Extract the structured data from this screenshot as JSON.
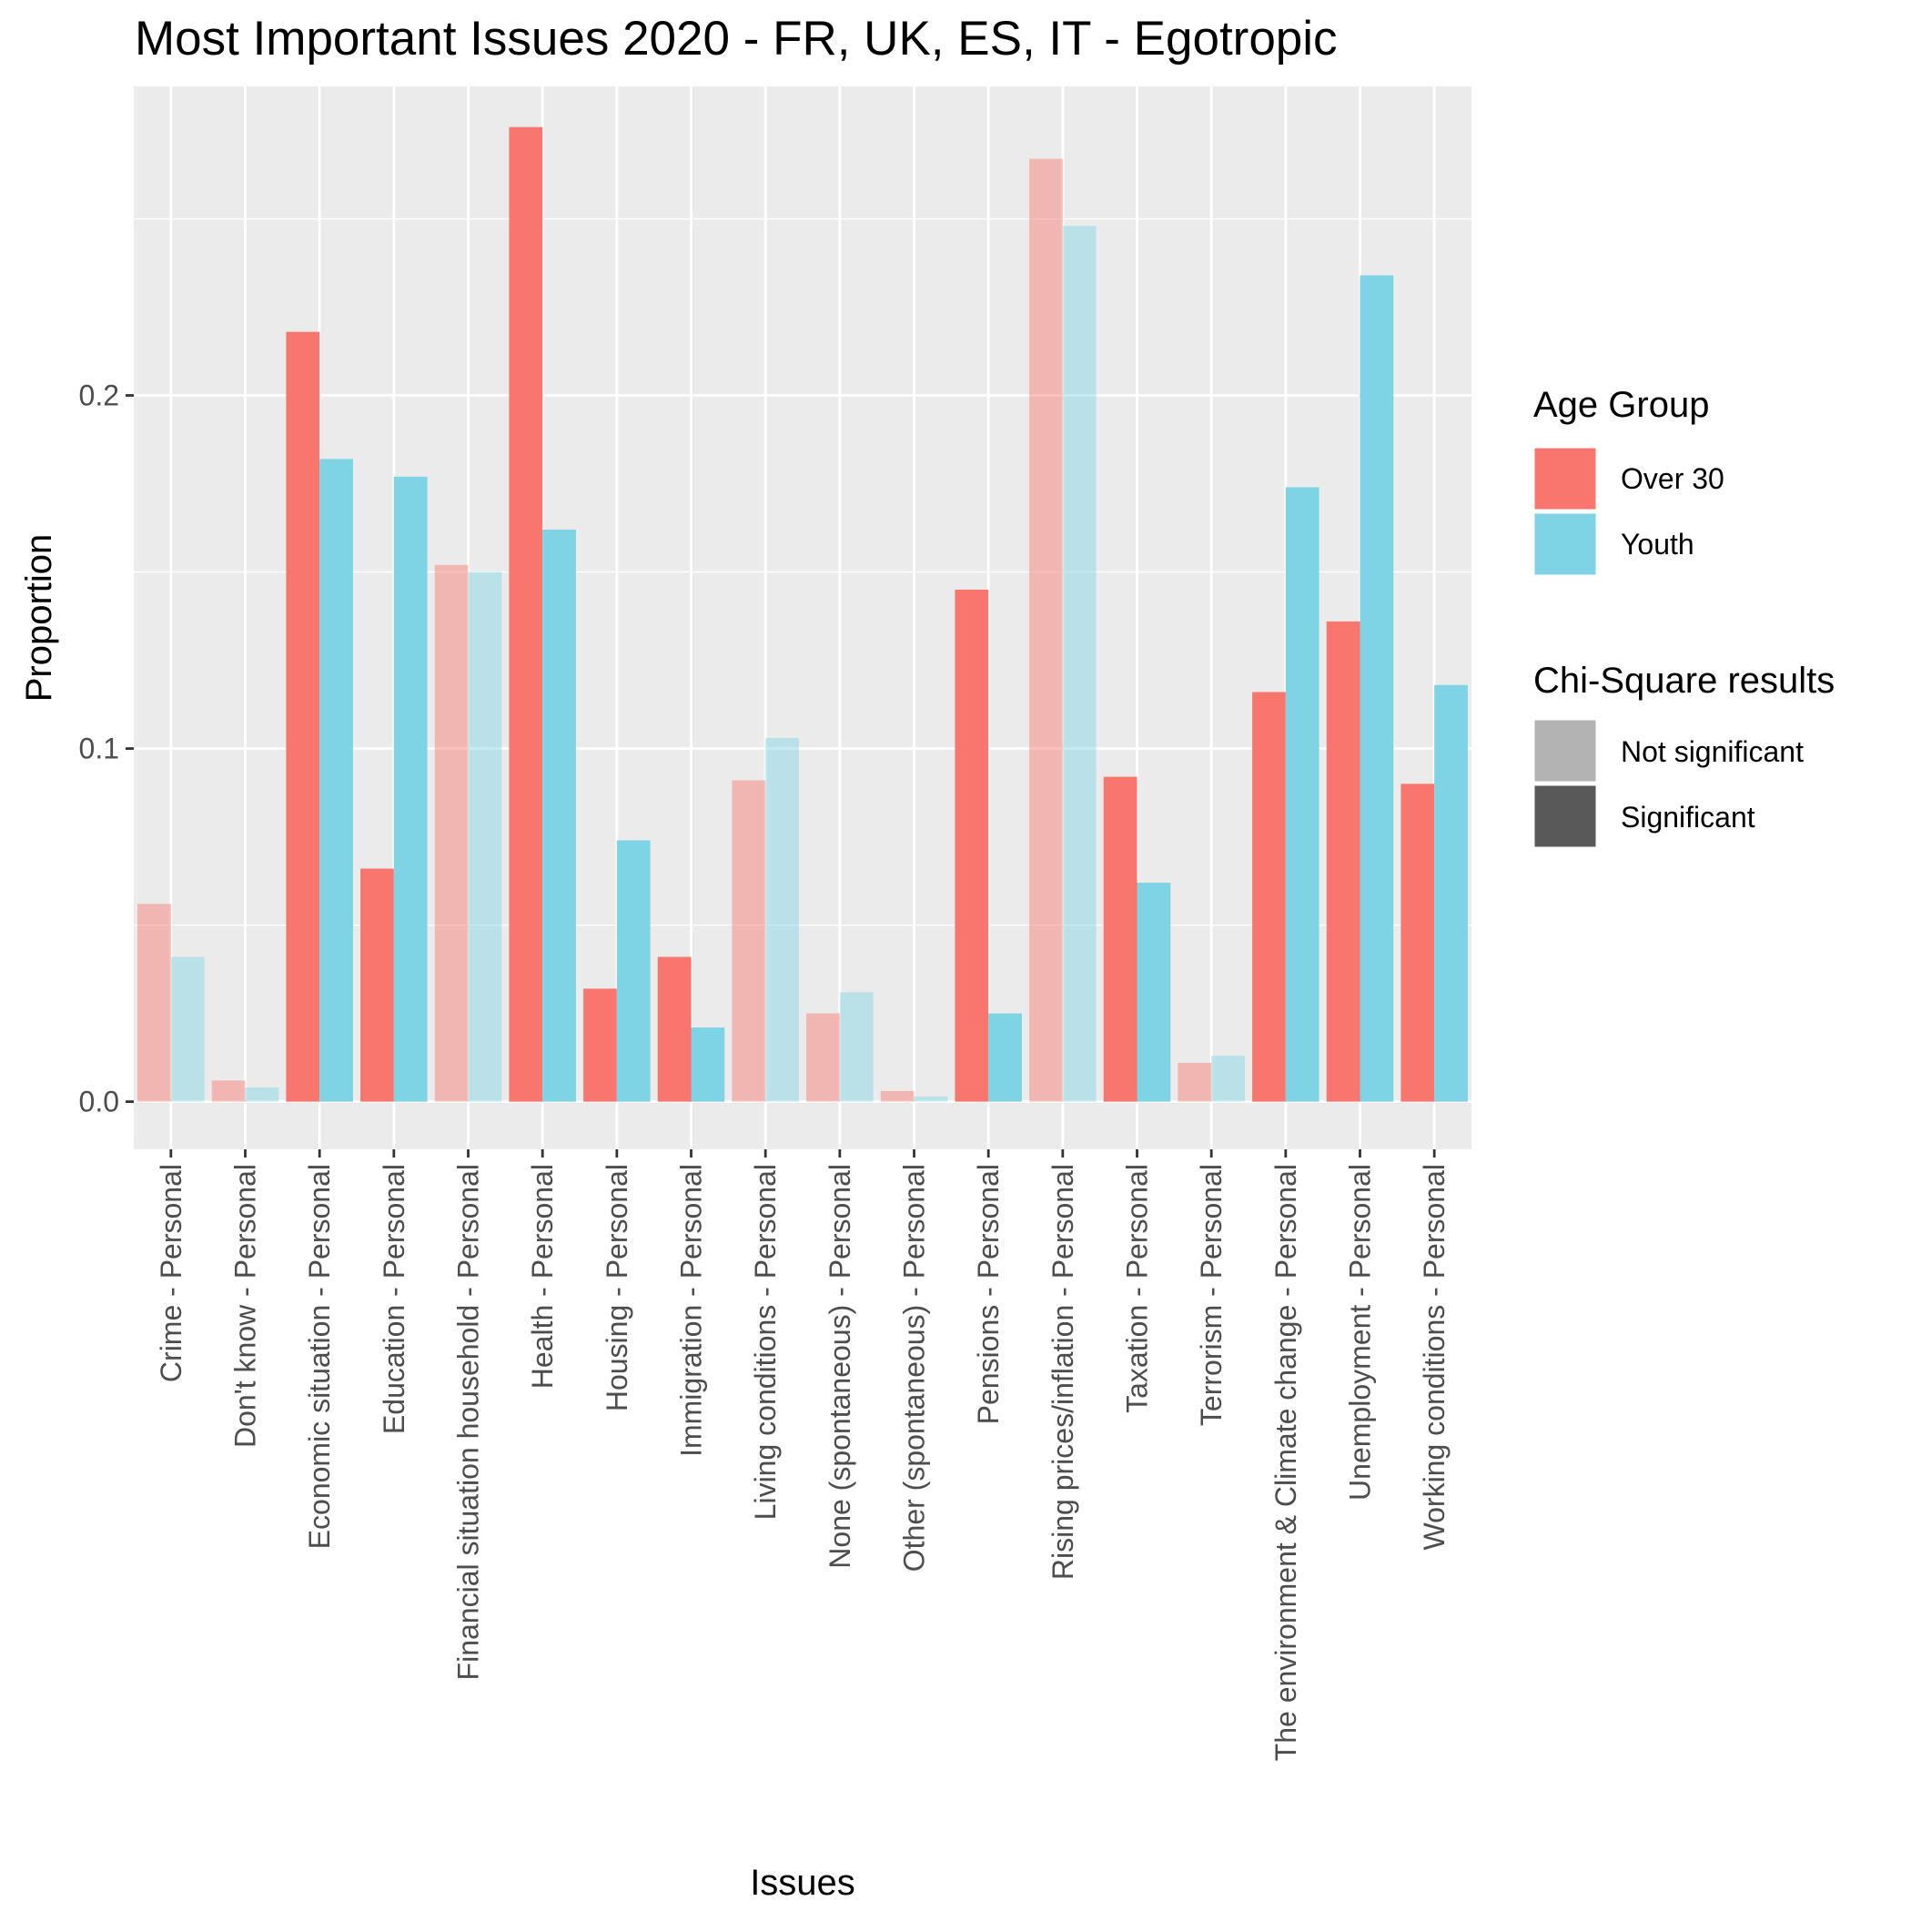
{
  "chart_data": {
    "type": "bar",
    "title": "Most Important Issues 2020 - FR, UK, ES, IT - Egotropic",
    "xlabel": "Issues",
    "ylabel": "Proportion",
    "ylim": [
      -0.0135,
      0.2875
    ],
    "yticks": [
      0.0,
      0.1,
      0.2
    ],
    "ytick_labels": [
      "0.0",
      "0.1",
      "0.2"
    ],
    "grid": true,
    "categories": [
      "Crime - Personal",
      "Don't know - Personal",
      "Economic situation - Personal",
      "Education - Personal",
      "Financial situation household - Personal",
      "Health - Personal",
      "Housing - Personal",
      "Immigration - Personal",
      "Living conditions - Personal",
      "None (spontaneous) - Personal",
      "Other (spontaneous) - Personal",
      "Pensions - Personal",
      "Rising prices/inflation - Personal",
      "Taxation - Personal",
      "Terrorism - Personal",
      "The environment & Climate change - Personal",
      "Unemployment - Personal",
      "Working conditions - Personal"
    ],
    "series": [
      {
        "name": "Over 30",
        "color": "#f8766d",
        "values": [
          0.056,
          0.006,
          0.218,
          0.066,
          0.152,
          0.276,
          0.032,
          0.041,
          0.091,
          0.025,
          0.003,
          0.145,
          0.267,
          0.092,
          0.011,
          0.116,
          0.136,
          0.09
        ]
      },
      {
        "name": "Youth",
        "color": "#7ed3e4",
        "values": [
          0.041,
          0.004,
          0.182,
          0.177,
          0.15,
          0.162,
          0.074,
          0.021,
          0.103,
          0.031,
          0.0015,
          0.025,
          0.248,
          0.062,
          0.013,
          0.174,
          0.234,
          0.118
        ]
      }
    ],
    "significant": [
      false,
      false,
      true,
      true,
      false,
      true,
      true,
      true,
      false,
      false,
      false,
      true,
      false,
      true,
      false,
      true,
      true,
      true
    ],
    "legend": {
      "placement": "right",
      "groups": [
        {
          "title": "Age Group",
          "items": [
            {
              "label": "Over 30",
              "color": "#f8766d"
            },
            {
              "label": "Youth",
              "color": "#7ed3e4"
            }
          ]
        },
        {
          "title": "Chi-Square results",
          "items": [
            {
              "label": "Not significant",
              "color": "#b3b3b3"
            },
            {
              "label": "Significant",
              "color": "#595959"
            }
          ]
        }
      ]
    }
  }
}
